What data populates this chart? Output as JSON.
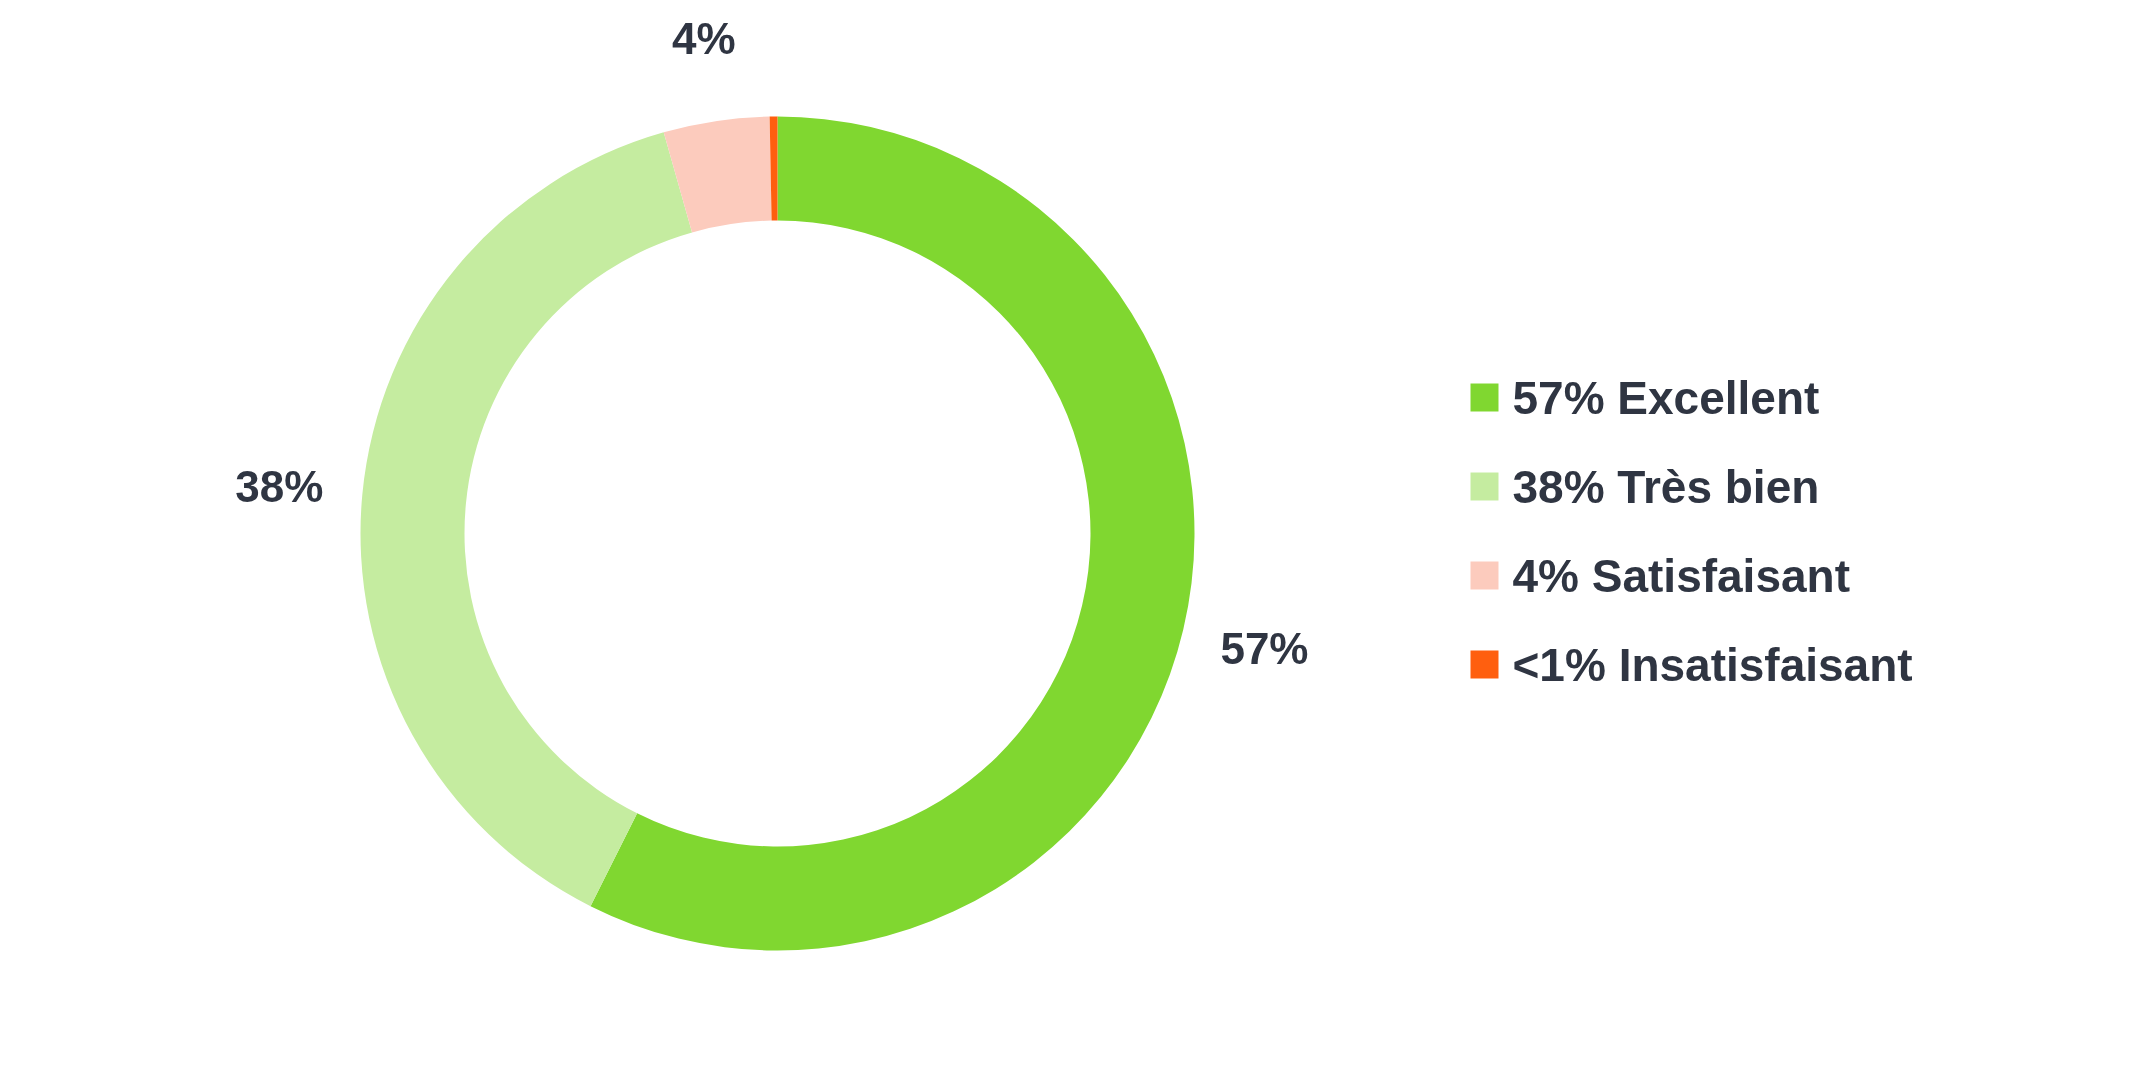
{
  "chart_data": {
    "type": "donut",
    "categories": [
      "57% Excellent",
      "38% Très bien",
      "  4% Satisfaisant",
      "<1% Insatisfaisant"
    ],
    "values": [
      57.4,
      38.2,
      4.1,
      0.3
    ],
    "colors": [
      "#80d730",
      "#c5eca0",
      "#fccbbd",
      "#ff5f0f"
    ],
    "value_labels": [
      "57%",
      "38%",
      "4%",
      null
    ],
    "legend": "right"
  }
}
